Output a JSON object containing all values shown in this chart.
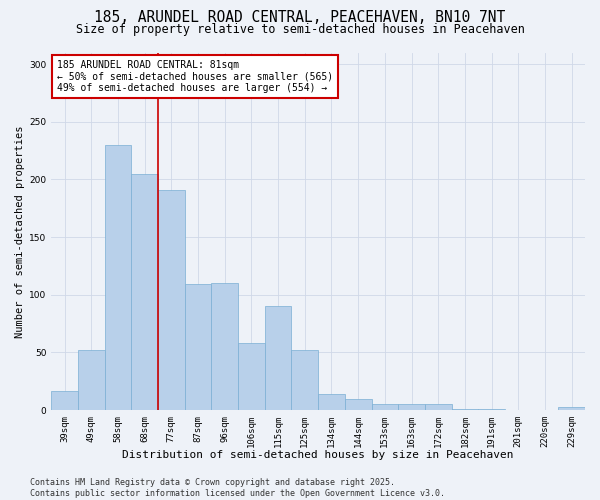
{
  "title": "185, ARUNDEL ROAD CENTRAL, PEACEHAVEN, BN10 7NT",
  "subtitle": "Size of property relative to semi-detached houses in Peacehaven",
  "xlabel": "Distribution of semi-detached houses by size in Peacehaven",
  "ylabel": "Number of semi-detached properties",
  "categories": [
    "39sqm",
    "49sqm",
    "58sqm",
    "68sqm",
    "77sqm",
    "87sqm",
    "96sqm",
    "106sqm",
    "115sqm",
    "125sqm",
    "134sqm",
    "144sqm",
    "153sqm",
    "163sqm",
    "172sqm",
    "182sqm",
    "191sqm",
    "201sqm",
    "220sqm",
    "229sqm"
  ],
  "values": [
    17,
    52,
    230,
    205,
    191,
    109,
    110,
    58,
    90,
    52,
    14,
    10,
    5,
    5,
    5,
    1,
    1,
    0,
    0,
    3
  ],
  "bar_color": "#b8d0ea",
  "bar_edge_color": "#7aafd4",
  "vline_index": 4,
  "annotation_text": "185 ARUNDEL ROAD CENTRAL: 81sqm\n← 50% of semi-detached houses are smaller (565)\n49% of semi-detached houses are larger (554) →",
  "annotation_box_facecolor": "#ffffff",
  "annotation_box_edgecolor": "#cc0000",
  "vline_color": "#cc0000",
  "ylim": [
    0,
    310
  ],
  "yticks": [
    0,
    50,
    100,
    150,
    200,
    250,
    300
  ],
  "footer_text": "Contains HM Land Registry data © Crown copyright and database right 2025.\nContains public sector information licensed under the Open Government Licence v3.0.",
  "grid_color": "#d0d8e8",
  "background_color": "#eef2f8",
  "title_fontsize": 10.5,
  "subtitle_fontsize": 8.5,
  "annotation_fontsize": 7,
  "tick_fontsize": 6.5,
  "footer_fontsize": 6,
  "ylabel_fontsize": 7.5,
  "xlabel_fontsize": 8
}
